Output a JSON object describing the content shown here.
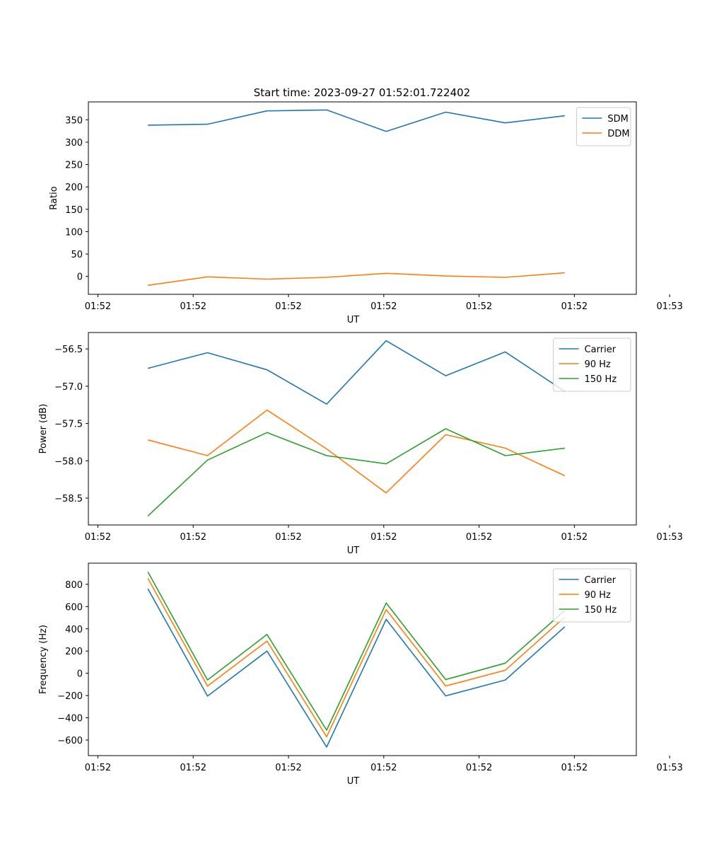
{
  "figure": {
    "title": "Start time: 2023-09-27 01:52:01.722402"
  },
  "chart_data": [
    {
      "type": "line",
      "title": "Start time: 2023-09-27 01:52:01.722402",
      "xlabel": "UT",
      "ylabel": "Ratio",
      "x_ticks": [
        "01:52",
        "01:52",
        "01:52",
        "01:52",
        "01:52",
        "01:52",
        "01:53"
      ],
      "x": [
        0.5,
        1,
        1.5,
        2,
        2.5,
        3,
        3.5,
        4
      ],
      "xlim": [
        0,
        4.6
      ],
      "ylim": [
        -40,
        390
      ],
      "y_ticks": [
        0,
        50,
        100,
        150,
        200,
        250,
        300,
        350
      ],
      "legend": "top-right",
      "series": [
        {
          "name": "SDM",
          "color": "#1f77b4",
          "values": [
            338,
            340,
            370,
            372,
            324,
            367,
            343,
            359
          ]
        },
        {
          "name": "DDM",
          "color": "#ff7f0e",
          "values": [
            -20,
            -1,
            -6,
            -2,
            7,
            1,
            -2,
            8
          ]
        }
      ]
    },
    {
      "type": "line",
      "xlabel": "UT",
      "ylabel": "Power (dB)",
      "x_ticks": [
        "01:52",
        "01:52",
        "01:52",
        "01:52",
        "01:52",
        "01:52",
        "01:53"
      ],
      "x": [
        0.5,
        1,
        1.5,
        2,
        2.5,
        3,
        3.5,
        4
      ],
      "xlim": [
        0,
        4.6
      ],
      "ylim": [
        -58.86,
        -56.28
      ],
      "y_ticks": [
        -58.5,
        -58.0,
        -57.5,
        -57.0,
        -56.5
      ],
      "legend": "top-right",
      "series": [
        {
          "name": "Carrier",
          "color": "#1f77b4",
          "values": [
            -56.76,
            -56.55,
            -56.78,
            -57.24,
            -56.39,
            -56.86,
            -56.54,
            -57.07
          ]
        },
        {
          "name": "90 Hz",
          "color": "#ff7f0e",
          "values": [
            -57.72,
            -57.93,
            -57.32,
            -57.84,
            -58.43,
            -57.65,
            -57.83,
            -58.2
          ]
        },
        {
          "name": "150 Hz",
          "color": "#2ca02c",
          "values": [
            -58.74,
            -57.99,
            -57.62,
            -57.93,
            -58.04,
            -57.57,
            -57.93,
            -57.83
          ]
        }
      ]
    },
    {
      "type": "line",
      "xlabel": "UT",
      "ylabel": "Frequency (Hz)",
      "x_ticks": [
        "01:52",
        "01:52",
        "01:52",
        "01:52",
        "01:52",
        "01:52",
        "01:53"
      ],
      "x": [
        0.5,
        1,
        1.5,
        2,
        2.5,
        3,
        3.5,
        4
      ],
      "xlim": [
        0,
        4.6
      ],
      "ylim": [
        -740,
        990
      ],
      "y_ticks": [
        -600,
        -400,
        -200,
        0,
        200,
        400,
        600,
        800
      ],
      "legend": "top-right",
      "series": [
        {
          "name": "Carrier",
          "color": "#1f77b4",
          "values": [
            760,
            -205,
            200,
            -663,
            485,
            -203,
            -60,
            418
          ]
        },
        {
          "name": "90 Hz",
          "color": "#ff7f0e",
          "values": [
            853,
            -115,
            290,
            -571,
            573,
            -114,
            28,
            506
          ]
        },
        {
          "name": "150 Hz",
          "color": "#2ca02c",
          "values": [
            911,
            -60,
            349,
            -511,
            632,
            -56,
            91,
            565
          ]
        }
      ]
    }
  ]
}
